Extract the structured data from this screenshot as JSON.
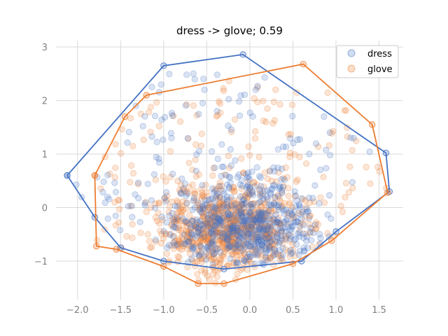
{
  "chart_data": {
    "type": "scatter",
    "title": "dress -> glove; 0.59",
    "xlabel": "",
    "ylabel": "",
    "xlim": [
      -2.25,
      1.78
    ],
    "ylim": [
      -1.72,
      3.12
    ],
    "x_ticks": [
      -2.0,
      -1.5,
      -1.0,
      -0.5,
      0.0,
      0.5,
      1.0,
      1.5
    ],
    "x_tick_labels": [
      "−2.0",
      "−1.5",
      "−1.0",
      "−0.5",
      "0.0",
      "0.5",
      "1.0",
      "1.5"
    ],
    "y_ticks": [
      -1,
      0,
      1,
      2,
      3
    ],
    "y_tick_labels": [
      "−1",
      "0",
      "1",
      "2",
      "3"
    ],
    "grid": true,
    "legend_position": "top-right",
    "series": [
      {
        "name": "dress",
        "color": "#4472c4",
        "point_count": 700,
        "center": [
          -0.05,
          -0.3
        ],
        "hull": [
          [
            -2.12,
            0.6
          ],
          [
            -1.0,
            2.65
          ],
          [
            -0.08,
            2.86
          ],
          [
            1.58,
            1.02
          ],
          [
            1.62,
            0.3
          ],
          [
            1.0,
            -0.45
          ],
          [
            0.6,
            -1.0
          ],
          [
            -0.3,
            -1.15
          ],
          [
            -1.0,
            -1.0
          ],
          [
            -1.5,
            -0.75
          ],
          [
            -1.8,
            -0.18
          ],
          [
            -2.12,
            0.6
          ]
        ]
      },
      {
        "name": "glove",
        "color": "#ed7d31",
        "point_count": 900,
        "center": [
          -0.25,
          -0.4
        ],
        "hull": [
          [
            -1.8,
            0.6
          ],
          [
            -1.45,
            1.7
          ],
          [
            -1.2,
            2.1
          ],
          [
            0.62,
            2.68
          ],
          [
            1.42,
            1.55
          ],
          [
            1.6,
            0.28
          ],
          [
            0.95,
            -0.62
          ],
          [
            0.5,
            -1.05
          ],
          [
            -0.3,
            -1.42
          ],
          [
            -0.6,
            -1.42
          ],
          [
            -1.0,
            -1.1
          ],
          [
            -1.55,
            -0.78
          ],
          [
            -1.78,
            -0.72
          ],
          [
            -1.8,
            0.6
          ]
        ]
      }
    ]
  }
}
